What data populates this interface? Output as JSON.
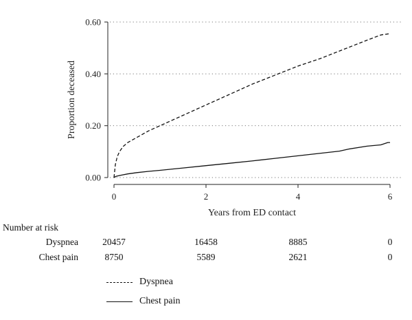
{
  "chart_data": {
    "type": "line",
    "title": "",
    "xlabel": "Years from ED contact",
    "ylabel": "Proportion deceased",
    "xlim": [
      0,
      6
    ],
    "ylim": [
      0,
      0.6
    ],
    "x_ticks": [
      0,
      2,
      4,
      6
    ],
    "x_tick_labels": [
      "0",
      "2",
      "4",
      "6"
    ],
    "y_ticks": [
      0,
      0.2,
      0.4,
      0.6
    ],
    "y_tick_labels": [
      "0.00",
      "0.20",
      "0.40",
      "0.60"
    ],
    "grid": "horizontal dotted",
    "series": [
      {
        "name": "Dyspnea",
        "style": "dashed",
        "color": "#111111",
        "x": [
          0,
          0.03,
          0.07,
          0.12,
          0.2,
          0.3,
          0.5,
          0.75,
          1.0,
          1.5,
          2.0,
          2.5,
          3.0,
          3.5,
          4.0,
          4.5,
          5.0,
          5.5,
          5.8,
          6.0
        ],
        "y": [
          0,
          0.05,
          0.08,
          0.1,
          0.12,
          0.135,
          0.155,
          0.18,
          0.2,
          0.24,
          0.28,
          0.32,
          0.36,
          0.395,
          0.43,
          0.46,
          0.495,
          0.53,
          0.55,
          0.555
        ]
      },
      {
        "name": "Chest pain",
        "style": "solid",
        "color": "#111111",
        "x": [
          0,
          0.05,
          0.15,
          0.3,
          0.5,
          0.75,
          1.0,
          1.5,
          2.0,
          2.5,
          3.0,
          3.5,
          4.0,
          4.5,
          4.9,
          5.1,
          5.5,
          5.8,
          5.95,
          6.0
        ],
        "y": [
          0,
          0.005,
          0.009,
          0.014,
          0.019,
          0.024,
          0.028,
          0.037,
          0.046,
          0.055,
          0.064,
          0.074,
          0.084,
          0.094,
          0.102,
          0.11,
          0.121,
          0.126,
          0.135,
          0.135
        ]
      }
    ]
  },
  "risk_table": {
    "heading": "Number at risk",
    "rows": [
      {
        "label": "Dyspnea",
        "values": [
          "20457",
          "16458",
          "8885",
          "0"
        ]
      },
      {
        "label": "Chest pain",
        "values": [
          "8750",
          "5589",
          "2621",
          "0"
        ]
      }
    ]
  },
  "legend": [
    {
      "label": "Dyspnea",
      "style": "dashed"
    },
    {
      "label": "Chest pain",
      "style": "solid"
    }
  ]
}
